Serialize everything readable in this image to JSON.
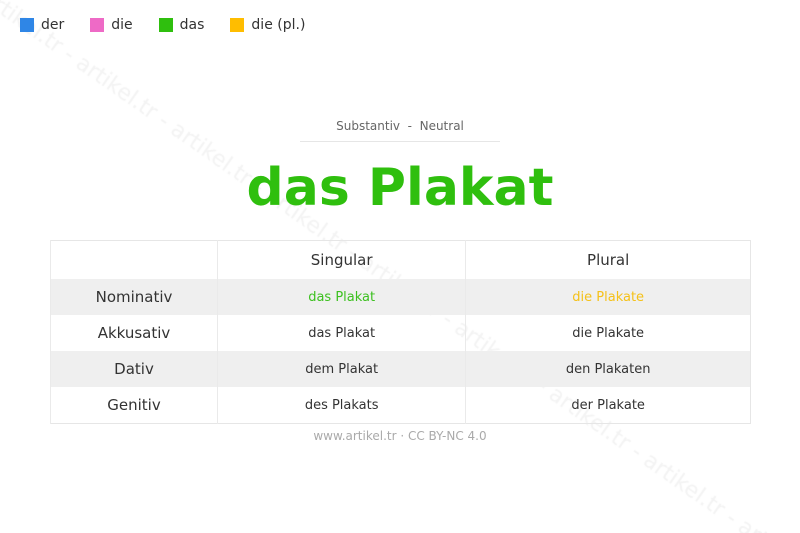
{
  "watermark": "artikel.tr - artikel.tr - artikel.tr - artikel.tr - artikel.tr",
  "legend": [
    {
      "label": "der",
      "color": "#2f86e6"
    },
    {
      "label": "die",
      "color": "#ee6ac6"
    },
    {
      "label": "das",
      "color": "#2fbf0e"
    },
    {
      "label": "die (pl.)",
      "color": "#ffbd00"
    }
  ],
  "subtitle": "Substantiv  -  Neutral",
  "title": "das Plakat",
  "table": {
    "headers": [
      "",
      "Singular",
      "Plural"
    ],
    "rows": [
      {
        "case": "Nominativ",
        "singular": "das Plakat",
        "plural": "die Plakate",
        "singular_color": "#3cc01f",
        "plural_color": "#f5c118"
      },
      {
        "case": "Akkusativ",
        "singular": "das Plakat",
        "plural": "die Plakate"
      },
      {
        "case": "Dativ",
        "singular": "dem Plakat",
        "plural": "den Plakaten"
      },
      {
        "case": "Genitiv",
        "singular": "des Plakats",
        "plural": "der Plakate"
      }
    ]
  },
  "footer": "www.artikel.tr · CC BY-NC 4.0"
}
